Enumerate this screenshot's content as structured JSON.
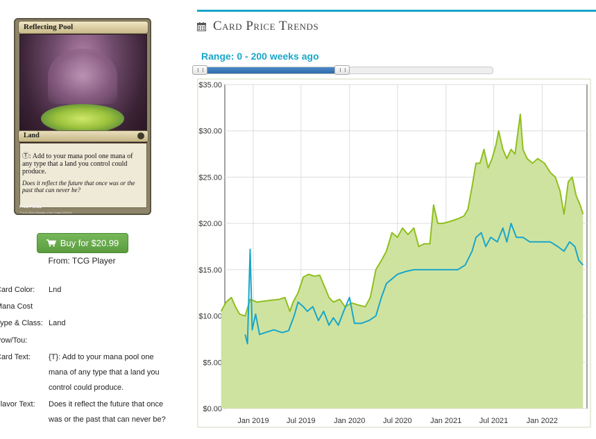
{
  "card": {
    "name": "Reflecting Pool",
    "type_line": "Land",
    "rules_text": "Ⓣ: Add to your mana pool one mana of any type that a land you control could produce.",
    "flavor_text": "Does it reflect the future that once was or the past that can never be?",
    "artist": "Fred Fields",
    "copyright": "™ & © 2014 Wizards of the Coast 220/310"
  },
  "buy": {
    "label": "Buy for $20.99",
    "from": "From: TCG Player",
    "color": "#5fa046"
  },
  "properties": [
    {
      "label": "Card Color:",
      "value": "Lnd"
    },
    {
      "label": "Mana Cost",
      "value": ""
    },
    {
      "label": "Type & Class:",
      "value": "Land"
    },
    {
      "label": "Pow/Tou:",
      "value": ""
    },
    {
      "label": "Card Text:",
      "value": "{T}: Add to your mana pool one mana of any type that a land you control could produce."
    },
    {
      "label": "Flavor Text:",
      "value": "Does it reflect the future that once was or the past that can never be?"
    }
  ],
  "trends": {
    "title": "Card Price Trends",
    "range_label": "Range: 0 - 200 weeks ago",
    "accent": "#1aa6c9",
    "slider": {
      "min": 0,
      "max": 200,
      "low": 0,
      "high": 200
    }
  },
  "chart_data": {
    "type": "area",
    "title": "",
    "xlabel": "",
    "ylabel": "",
    "ylim": [
      0,
      35
    ],
    "xlim": [
      "2018-09",
      "2022-06"
    ],
    "y_ticks": [
      "$0.00",
      "$5.00",
      "$10.00",
      "$15.00",
      "$20.00",
      "$25.00",
      "$30.00",
      "$35.00"
    ],
    "x_ticks": [
      "Jan 2019",
      "Jul 2019",
      "Jan 2020",
      "Jul 2020",
      "Jan 2021",
      "Jul 2021",
      "Jan 2022"
    ],
    "grid": true,
    "series": [
      {
        "color": "#8fbf1f",
        "fill": "#cfe3a0",
        "points": [
          [
            "2018-09-01",
            10.5
          ],
          [
            "2018-09-20",
            11.5
          ],
          [
            "2018-10-10",
            12.0
          ],
          [
            "2018-10-25",
            11.0
          ],
          [
            "2018-11-10",
            10.2
          ],
          [
            "2018-12-01",
            10.0
          ],
          [
            "2018-12-20",
            11.8
          ],
          [
            "2019-01-15",
            11.5
          ],
          [
            "2019-02-10",
            11.6
          ],
          [
            "2019-03-10",
            11.7
          ],
          [
            "2019-04-10",
            11.8
          ],
          [
            "2019-05-01",
            12.0
          ],
          [
            "2019-05-20",
            10.5
          ],
          [
            "2019-06-01",
            11.5
          ],
          [
            "2019-06-20",
            12.5
          ],
          [
            "2019-07-10",
            14.2
          ],
          [
            "2019-07-30",
            14.5
          ],
          [
            "2019-08-20",
            14.3
          ],
          [
            "2019-09-10",
            14.4
          ],
          [
            "2019-10-01",
            13.0
          ],
          [
            "2019-10-15",
            12.0
          ],
          [
            "2019-11-01",
            11.5
          ],
          [
            "2019-11-25",
            11.8
          ],
          [
            "2019-12-15",
            11.0
          ],
          [
            "2020-01-10",
            11.4
          ],
          [
            "2020-02-01",
            11.2
          ],
          [
            "2020-03-01",
            11.0
          ],
          [
            "2020-03-20",
            12.0
          ],
          [
            "2020-04-10",
            15.0
          ],
          [
            "2020-05-01",
            16.0
          ],
          [
            "2020-05-20",
            17.0
          ],
          [
            "2020-06-10",
            19.0
          ],
          [
            "2020-07-01",
            18.5
          ],
          [
            "2020-07-20",
            19.5
          ],
          [
            "2020-08-10",
            18.8
          ],
          [
            "2020-09-01",
            19.5
          ],
          [
            "2020-09-20",
            17.5
          ],
          [
            "2020-10-10",
            17.8
          ],
          [
            "2020-11-01",
            17.8
          ],
          [
            "2020-11-15",
            22.0
          ],
          [
            "2020-12-01",
            20.0
          ],
          [
            "2020-12-20",
            20.0
          ],
          [
            "2021-01-15",
            20.2
          ],
          [
            "2021-02-15",
            20.5
          ],
          [
            "2021-03-10",
            20.8
          ],
          [
            "2021-03-25",
            21.5
          ],
          [
            "2021-04-10",
            24.0
          ],
          [
            "2021-04-25",
            26.5
          ],
          [
            "2021-05-10",
            26.5
          ],
          [
            "2021-05-25",
            28.0
          ],
          [
            "2021-06-10",
            26.0
          ],
          [
            "2021-06-25",
            27.0
          ],
          [
            "2021-07-10",
            28.5
          ],
          [
            "2021-07-20",
            30.0
          ],
          [
            "2021-08-05",
            28.0
          ],
          [
            "2021-08-20",
            27.0
          ],
          [
            "2021-09-05",
            28.0
          ],
          [
            "2021-09-20",
            27.5
          ],
          [
            "2021-10-10",
            31.8
          ],
          [
            "2021-10-20",
            28.0
          ],
          [
            "2021-11-05",
            27.0
          ],
          [
            "2021-11-25",
            26.5
          ],
          [
            "2021-12-15",
            27.0
          ],
          [
            "2022-01-10",
            26.5
          ],
          [
            "2022-02-01",
            25.5
          ],
          [
            "2022-02-20",
            25.0
          ],
          [
            "2022-03-10",
            23.5
          ],
          [
            "2022-03-25",
            21.0
          ],
          [
            "2022-04-10",
            24.5
          ],
          [
            "2022-04-25",
            25.0
          ],
          [
            "2022-05-10",
            23.0
          ],
          [
            "2022-05-25",
            22.0
          ],
          [
            "2022-06-05",
            21.0
          ]
        ]
      },
      {
        "color": "#1aa6c9",
        "points": [
          [
            "2018-12-01",
            8.0
          ],
          [
            "2018-12-10",
            7.0
          ],
          [
            "2018-12-20",
            17.2
          ],
          [
            "2018-12-28",
            8.5
          ],
          [
            "2019-01-10",
            10.2
          ],
          [
            "2019-01-25",
            8.0
          ],
          [
            "2019-02-15",
            8.2
          ],
          [
            "2019-03-20",
            8.5
          ],
          [
            "2019-04-20",
            8.2
          ],
          [
            "2019-05-15",
            8.4
          ],
          [
            "2019-06-05",
            10.0
          ],
          [
            "2019-06-20",
            11.5
          ],
          [
            "2019-07-10",
            11.0
          ],
          [
            "2019-07-25",
            10.5
          ],
          [
            "2019-08-15",
            11.0
          ],
          [
            "2019-09-05",
            9.5
          ],
          [
            "2019-09-25",
            10.5
          ],
          [
            "2019-10-15",
            9.0
          ],
          [
            "2019-11-01",
            9.8
          ],
          [
            "2019-11-20",
            9.0
          ],
          [
            "2019-12-10",
            10.5
          ],
          [
            "2020-01-01",
            12.0
          ],
          [
            "2020-01-20",
            9.2
          ],
          [
            "2020-02-15",
            9.2
          ],
          [
            "2020-03-15",
            9.5
          ],
          [
            "2020-04-10",
            10.0
          ],
          [
            "2020-05-01",
            12.0
          ],
          [
            "2020-05-20",
            13.5
          ],
          [
            "2020-06-10",
            14.0
          ],
          [
            "2020-07-01",
            14.5
          ],
          [
            "2020-08-01",
            14.8
          ],
          [
            "2020-09-01",
            15.0
          ],
          [
            "2020-10-01",
            15.0
          ],
          [
            "2020-11-01",
            15.0
          ],
          [
            "2020-12-01",
            15.0
          ],
          [
            "2021-01-15",
            15.0
          ],
          [
            "2021-02-15",
            15.0
          ],
          [
            "2021-03-15",
            15.5
          ],
          [
            "2021-04-10",
            17.0
          ],
          [
            "2021-04-25",
            18.5
          ],
          [
            "2021-05-15",
            19.0
          ],
          [
            "2021-06-01",
            17.5
          ],
          [
            "2021-06-20",
            18.5
          ],
          [
            "2021-07-15",
            18.0
          ],
          [
            "2021-08-05",
            19.5
          ],
          [
            "2021-08-20",
            18.0
          ],
          [
            "2021-09-05",
            20.0
          ],
          [
            "2021-09-25",
            18.5
          ],
          [
            "2021-10-20",
            18.5
          ],
          [
            "2021-11-15",
            18.0
          ],
          [
            "2021-12-10",
            18.0
          ],
          [
            "2022-01-05",
            18.0
          ],
          [
            "2022-02-01",
            18.0
          ],
          [
            "2022-03-01",
            17.5
          ],
          [
            "2022-03-25",
            17.0
          ],
          [
            "2022-04-15",
            18.0
          ],
          [
            "2022-05-05",
            17.5
          ],
          [
            "2022-05-20",
            16.0
          ],
          [
            "2022-06-05",
            15.5
          ]
        ]
      }
    ]
  }
}
